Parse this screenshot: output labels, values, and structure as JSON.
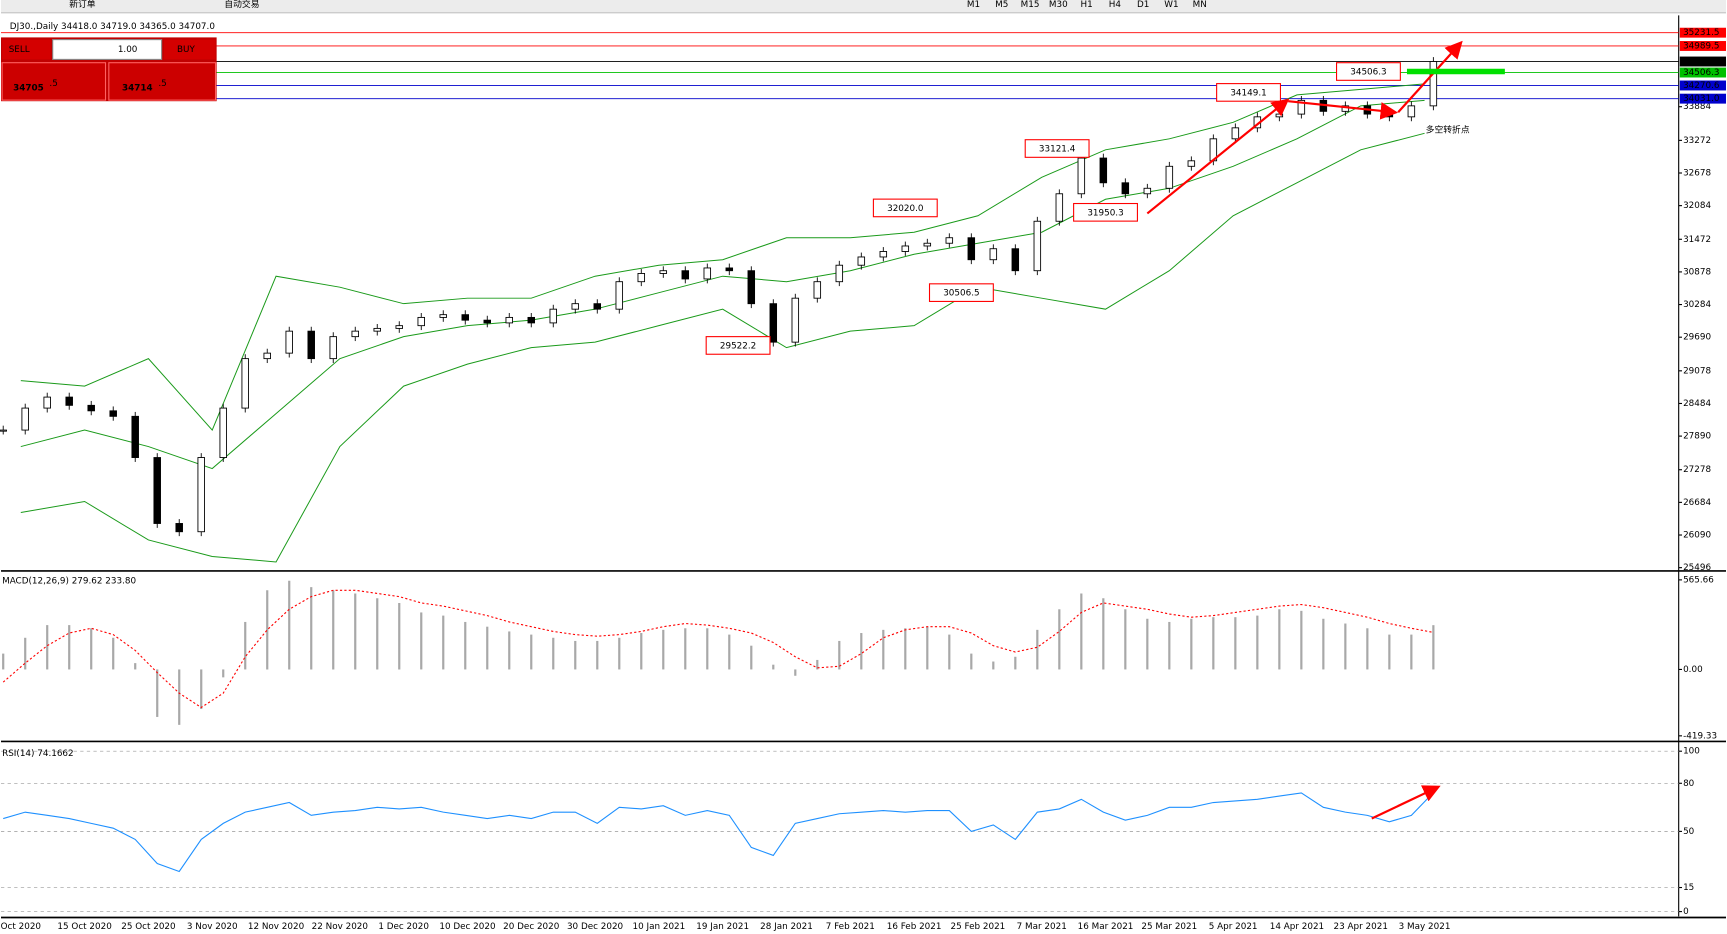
{
  "toolbar": {
    "new_order": "新订单",
    "auto_trade": "自动交易",
    "timeframes": [
      "M1",
      "M5",
      "M15",
      "M30",
      "H1",
      "H4",
      "D1",
      "W1",
      "MN"
    ]
  },
  "trade_panel": {
    "sell": "SELL",
    "buy": "BUY",
    "lots": "1.00",
    "sell_price": "34705",
    "sell_fraction": ".5",
    "buy_price": "34714",
    "buy_fraction": ".5"
  },
  "chart_data": [
    {
      "type": "candlestick",
      "title": "DJ30.,Daily  34418.0 34719.0 34365.0 34707.0",
      "x_labels": [
        "Oct 2020",
        "15 Oct 2020",
        "25 Oct 2020",
        "3 Nov 2020",
        "12 Nov 2020",
        "22 Nov 2020",
        "1 Dec 2020",
        "10 Dec 2020",
        "20 Dec 2020",
        "30 Dec 2020",
        "10 Jan 2021",
        "19 Jan 2021",
        "28 Jan 2021",
        "7 Feb 2021",
        "16 Feb 2021",
        "25 Feb 2021",
        "7 Mar 2021",
        "16 Mar 2021",
        "25 Mar 2021",
        "5 Apr 2021",
        "14 Apr 2021",
        "23 Apr 2021",
        "3 May 2021"
      ],
      "values": [
        28000,
        28400,
        28600,
        28450,
        28350,
        28250,
        27500,
        26300,
        26150,
        27500,
        28400,
        29300,
        29400,
        29800,
        29300,
        29700,
        29800,
        29850,
        29900,
        30050,
        30100,
        30000,
        29950,
        30050,
        29950,
        30200,
        30300,
        30200,
        30700,
        30850,
        30900,
        30750,
        30950,
        30900,
        30300,
        29600,
        30400,
        30700,
        31000,
        31150,
        31250,
        31350,
        31400,
        31500,
        31100,
        31300,
        30900,
        31800,
        32300,
        32950,
        32500,
        32300,
        32400,
        32800,
        32900,
        33300,
        33500,
        33700,
        33750,
        34000,
        33800,
        33900,
        33750,
        33700,
        33900,
        34707
      ],
      "ylim": [
        25456,
        35486
      ],
      "yticks": [
        25496,
        26090,
        26684,
        27278,
        27890,
        28484,
        29078,
        29690,
        30284,
        30878,
        31472,
        32084,
        32678,
        33272,
        33884
      ],
      "levels": [
        {
          "value": 35231.5,
          "label": "35231.5",
          "color": "#ff0000"
        },
        {
          "value": 34989.5,
          "label": "34989.5",
          "color": "#ff0000"
        },
        {
          "value": 34707,
          "label": "34707.0",
          "color": "#000000"
        },
        {
          "value": 34506.3,
          "label": "34506.3",
          "color": "#00c000"
        },
        {
          "value": 34270.6,
          "label": "34270.6",
          "color": "#0000cc"
        },
        {
          "value": 34031,
          "label": "34031.0",
          "color": "#0000cc"
        }
      ],
      "bands": {
        "color": "#1a9a1a",
        "upper": [
          28900,
          28800,
          29300,
          28000,
          30800,
          30600,
          30300,
          30400,
          30400,
          30800,
          31000,
          31100,
          31500,
          31500,
          31600,
          31900,
          32600,
          33100,
          33300,
          33600,
          34100,
          34200,
          34300
        ],
        "middle": [
          27700,
          28000,
          27700,
          27300,
          28300,
          29300,
          29700,
          29900,
          30000,
          30200,
          30500,
          30800,
          30700,
          30900,
          31200,
          31400,
          31600,
          32200,
          32400,
          32800,
          33300,
          33900,
          34000
        ],
        "lower": [
          26500,
          26700,
          26000,
          25700,
          25600,
          27700,
          28800,
          29200,
          29500,
          29600,
          29900,
          30200,
          29500,
          29800,
          29900,
          30600,
          30400,
          30200,
          30900,
          31900,
          32500,
          33100,
          33400
        ]
      },
      "annotations": [
        "34149.1",
        "34506.3",
        "33121.4",
        "32020.0",
        "31950.3",
        "30506.5",
        "29522.2"
      ],
      "annotation_text": "多空转折点"
    },
    {
      "type": "macd",
      "title": "MACD(12,26,9) 279.62 233.80",
      "histogram": [
        100,
        200,
        280,
        280,
        260,
        200,
        40,
        -300,
        -350,
        -250,
        -50,
        300,
        500,
        560,
        520,
        500,
        480,
        450,
        420,
        360,
        340,
        300,
        270,
        240,
        220,
        200,
        180,
        180,
        200,
        230,
        250,
        260,
        260,
        220,
        150,
        30,
        -40,
        60,
        180,
        230,
        250,
        260,
        270,
        220,
        100,
        50,
        80,
        250,
        380,
        480,
        450,
        380,
        320,
        300,
        320,
        330,
        330,
        340,
        380,
        370,
        320,
        290,
        260,
        220,
        220,
        279.62
      ],
      "signal": [
        -80,
        40,
        150,
        230,
        260,
        220,
        120,
        -20,
        -150,
        -240,
        -150,
        80,
        250,
        380,
        460,
        500,
        500,
        480,
        460,
        420,
        400,
        370,
        340,
        300,
        270,
        240,
        220,
        210,
        220,
        240,
        270,
        290,
        280,
        260,
        230,
        170,
        80,
        10,
        20,
        100,
        200,
        250,
        270,
        270,
        230,
        150,
        110,
        140,
        240,
        360,
        420,
        400,
        380,
        350,
        330,
        340,
        360,
        380,
        400,
        410,
        390,
        360,
        330,
        290,
        260,
        233.8
      ],
      "histogram_color": "#a8a8a8",
      "signal_color": "#ff0000",
      "ylim": [
        -448,
        615
      ],
      "yticks": [
        565.66,
        {
          "value": 0,
          "label": "0.00"
        },
        -419.33
      ]
    },
    {
      "type": "line",
      "title": "RSI(14) 74.1662",
      "values": [
        58,
        62,
        60,
        58,
        55,
        52,
        45,
        30,
        25,
        45,
        55,
        62,
        65,
        68,
        60,
        62,
        63,
        65,
        64,
        65,
        62,
        60,
        58,
        60,
        58,
        62,
        62,
        55,
        65,
        64,
        66,
        60,
        63,
        60,
        40,
        35,
        55,
        58,
        61,
        62,
        63,
        62,
        63,
        63,
        50,
        54,
        45,
        62,
        64,
        70,
        62,
        57,
        60,
        65,
        65,
        68,
        69,
        70,
        72,
        74,
        65,
        62,
        60,
        56,
        60,
        74.1662
      ],
      "color": "#1e90ff",
      "ylim": [
        -3,
        104
      ],
      "yticks": [
        100,
        80,
        50,
        15,
        0
      ]
    }
  ]
}
